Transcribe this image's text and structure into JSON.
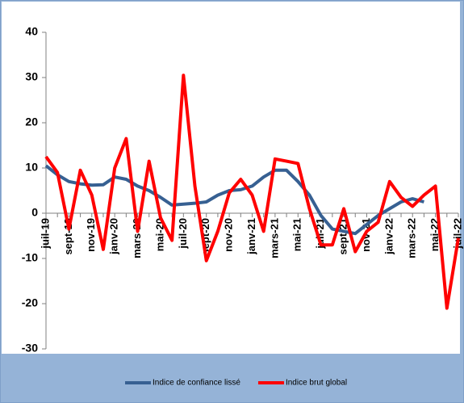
{
  "chart_data": {
    "type": "line",
    "categories": [
      "juil-19",
      null,
      "sept-19",
      null,
      "nov-19",
      null,
      "janv-20",
      null,
      "mars-20",
      null,
      "mai-20",
      null,
      "juil-20",
      null,
      "sept-20",
      null,
      "nov-20",
      null,
      "janv-21",
      null,
      "mars-21",
      null,
      "mai-21",
      null,
      "juil-21",
      null,
      "sept-21",
      null,
      "nov-21",
      null,
      "janv-22",
      null,
      "mars-22",
      null,
      "mai-22",
      null,
      "juil-22"
    ],
    "series": [
      {
        "name": "Indice de confiance lissé",
        "color": "#376092",
        "values": [
          10.5,
          8.5,
          7,
          6.5,
          6.2,
          6.3,
          8,
          7.5,
          6,
          5,
          3.5,
          1.8,
          2,
          2.2,
          2.5,
          4,
          5,
          5.2,
          6,
          8,
          9.5,
          9.5,
          7,
          4,
          -0.5,
          -3.5,
          -4,
          -4.5,
          -2.5,
          -0.5,
          1,
          2.5,
          3.2,
          2.5,
          null,
          null,
          null
        ]
      },
      {
        "name": "Indice brut global",
        "color": "#ff0000",
        "values": [
          12.5,
          9,
          -3.5,
          9.5,
          4,
          -8,
          10,
          16.5,
          -4,
          11.5,
          -1,
          -6,
          30.5,
          6,
          -10.5,
          -4,
          4.5,
          7.5,
          4,
          -4,
          12,
          11.5,
          11,
          1,
          -7,
          -7,
          1,
          -8.5,
          -4,
          -2,
          7,
          3.5,
          1.5,
          4,
          6,
          -21,
          -5.5
        ]
      }
    ],
    "ylim": [
      -30,
      40
    ],
    "yticks": [
      -30,
      -20,
      -10,
      0,
      10,
      20,
      30,
      40
    ],
    "legend": "bottom"
  }
}
